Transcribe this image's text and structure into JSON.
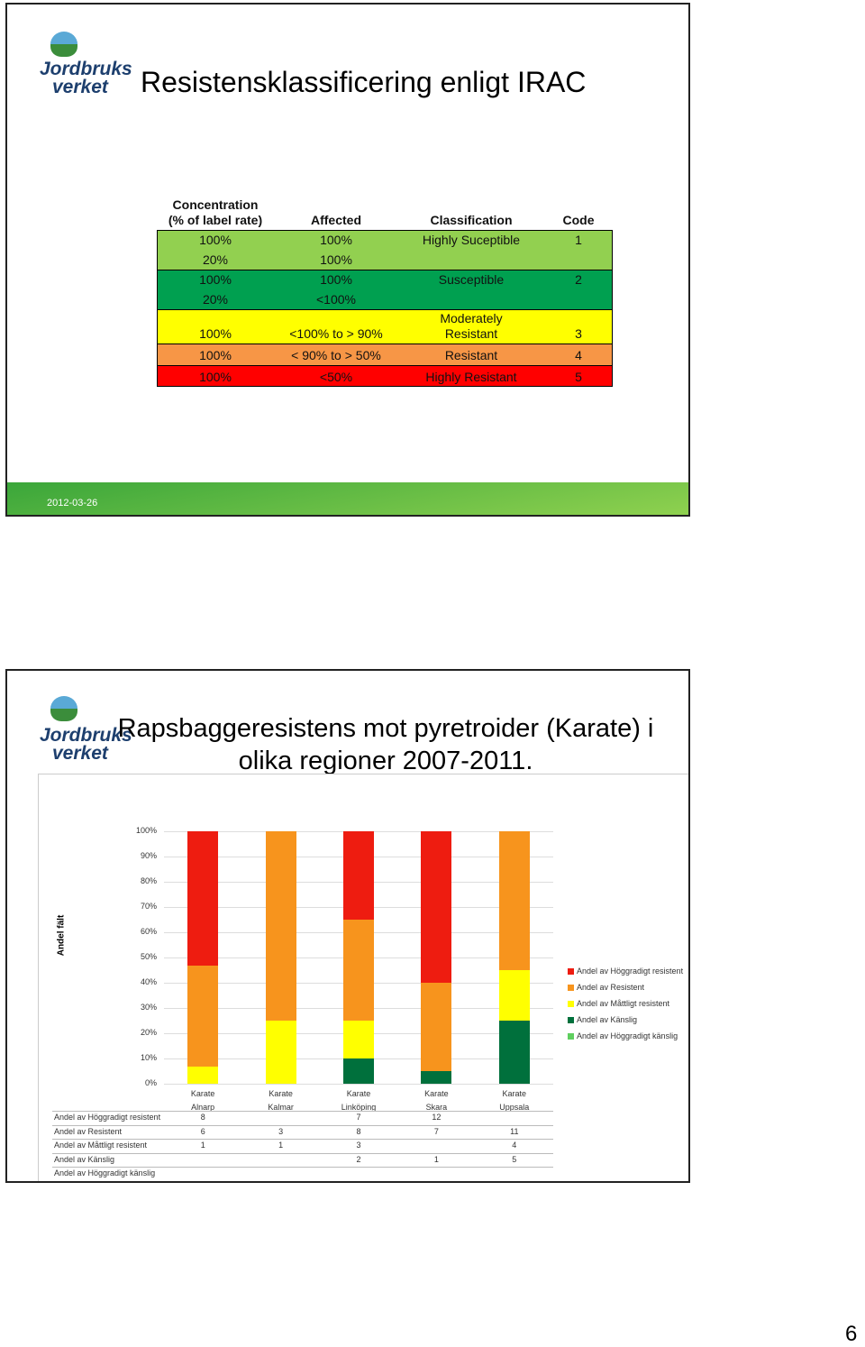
{
  "slide1": {
    "logo": [
      "Jordbruks",
      "verket"
    ],
    "title": "Resistensklassificering enligt IRAC",
    "date": "2012-03-26",
    "table": {
      "header": [
        "Concentration (% of label rate)",
        "Affected",
        "Classification",
        "Code"
      ],
      "rows": [
        {
          "color": "#92d050",
          "cells": [
            "100%",
            "100%",
            "Highly Suceptible",
            "1"
          ]
        },
        {
          "color": "#92d050",
          "cells": [
            "20%",
            "100%",
            null,
            null
          ]
        },
        {
          "color": "#00a050",
          "cells": [
            "100%",
            "100%",
            "Susceptible",
            "2"
          ]
        },
        {
          "color": "#00a050",
          "cells": [
            "20%",
            "<100%",
            null,
            null
          ]
        },
        {
          "color": "#ffff00",
          "cells": [
            "100%",
            "<100% to > 90%",
            "Moderately Resistant",
            "3"
          ]
        },
        {
          "color": "#f79646",
          "cells": [
            "100%",
            "< 90% to > 50%",
            "Resistant",
            "4"
          ]
        },
        {
          "color": "#ff0000",
          "cells": [
            "100%",
            "<50%",
            "Highly Resistant",
            "5"
          ]
        }
      ]
    }
  },
  "slide2": {
    "logo": [
      "Jordbruks",
      "verket"
    ],
    "title": "Rapsbaggeresistens mot pyretroider (Karate) i olika regioner 2007-2011."
  },
  "chart_data": {
    "type": "stacked_percent_bar",
    "y_label": "Andel fält",
    "categories": [
      "Karate Alnarp",
      "Karate Kalmar",
      "Karate Linköping",
      "Karate Skara",
      "Karate Uppsala"
    ],
    "ylim": [
      0,
      100
    ],
    "yticks": [
      {
        "value": 0,
        "label": "0%"
      },
      {
        "value": 10,
        "label": "10%"
      },
      {
        "value": 20,
        "label": "20%"
      },
      {
        "value": 30,
        "label": "30%"
      },
      {
        "value": 40,
        "label": "40%"
      },
      {
        "value": 50,
        "label": "50%"
      },
      {
        "value": 60,
        "label": "60%"
      },
      {
        "value": 70,
        "label": "70%"
      },
      {
        "value": 80,
        "label": "80%"
      },
      {
        "value": 90,
        "label": "90%"
      },
      {
        "value": 100,
        "label": "100%"
      }
    ],
    "grid": true,
    "series": [
      {
        "name": "Andel av Höggradigt resistent",
        "color": "#ee1c10",
        "values": [
          8,
          null,
          7,
          12,
          null
        ]
      },
      {
        "name": "Andel av Resistent",
        "color": "#f7941d",
        "values": [
          6,
          3,
          8,
          7,
          11
        ]
      },
      {
        "name": "Andel av Måttligt resistent",
        "color": "#ffff00",
        "values": [
          1,
          1,
          3,
          null,
          4
        ]
      },
      {
        "name": "Andel av Känslig",
        "color": "#00703c",
        "values": [
          null,
          null,
          2,
          1,
          5
        ]
      },
      {
        "name": "Andel av Höggradigt känslig",
        "color": "#5fcf5f",
        "values": [
          null,
          null,
          null,
          null,
          null
        ]
      }
    ]
  },
  "page_number": "6"
}
